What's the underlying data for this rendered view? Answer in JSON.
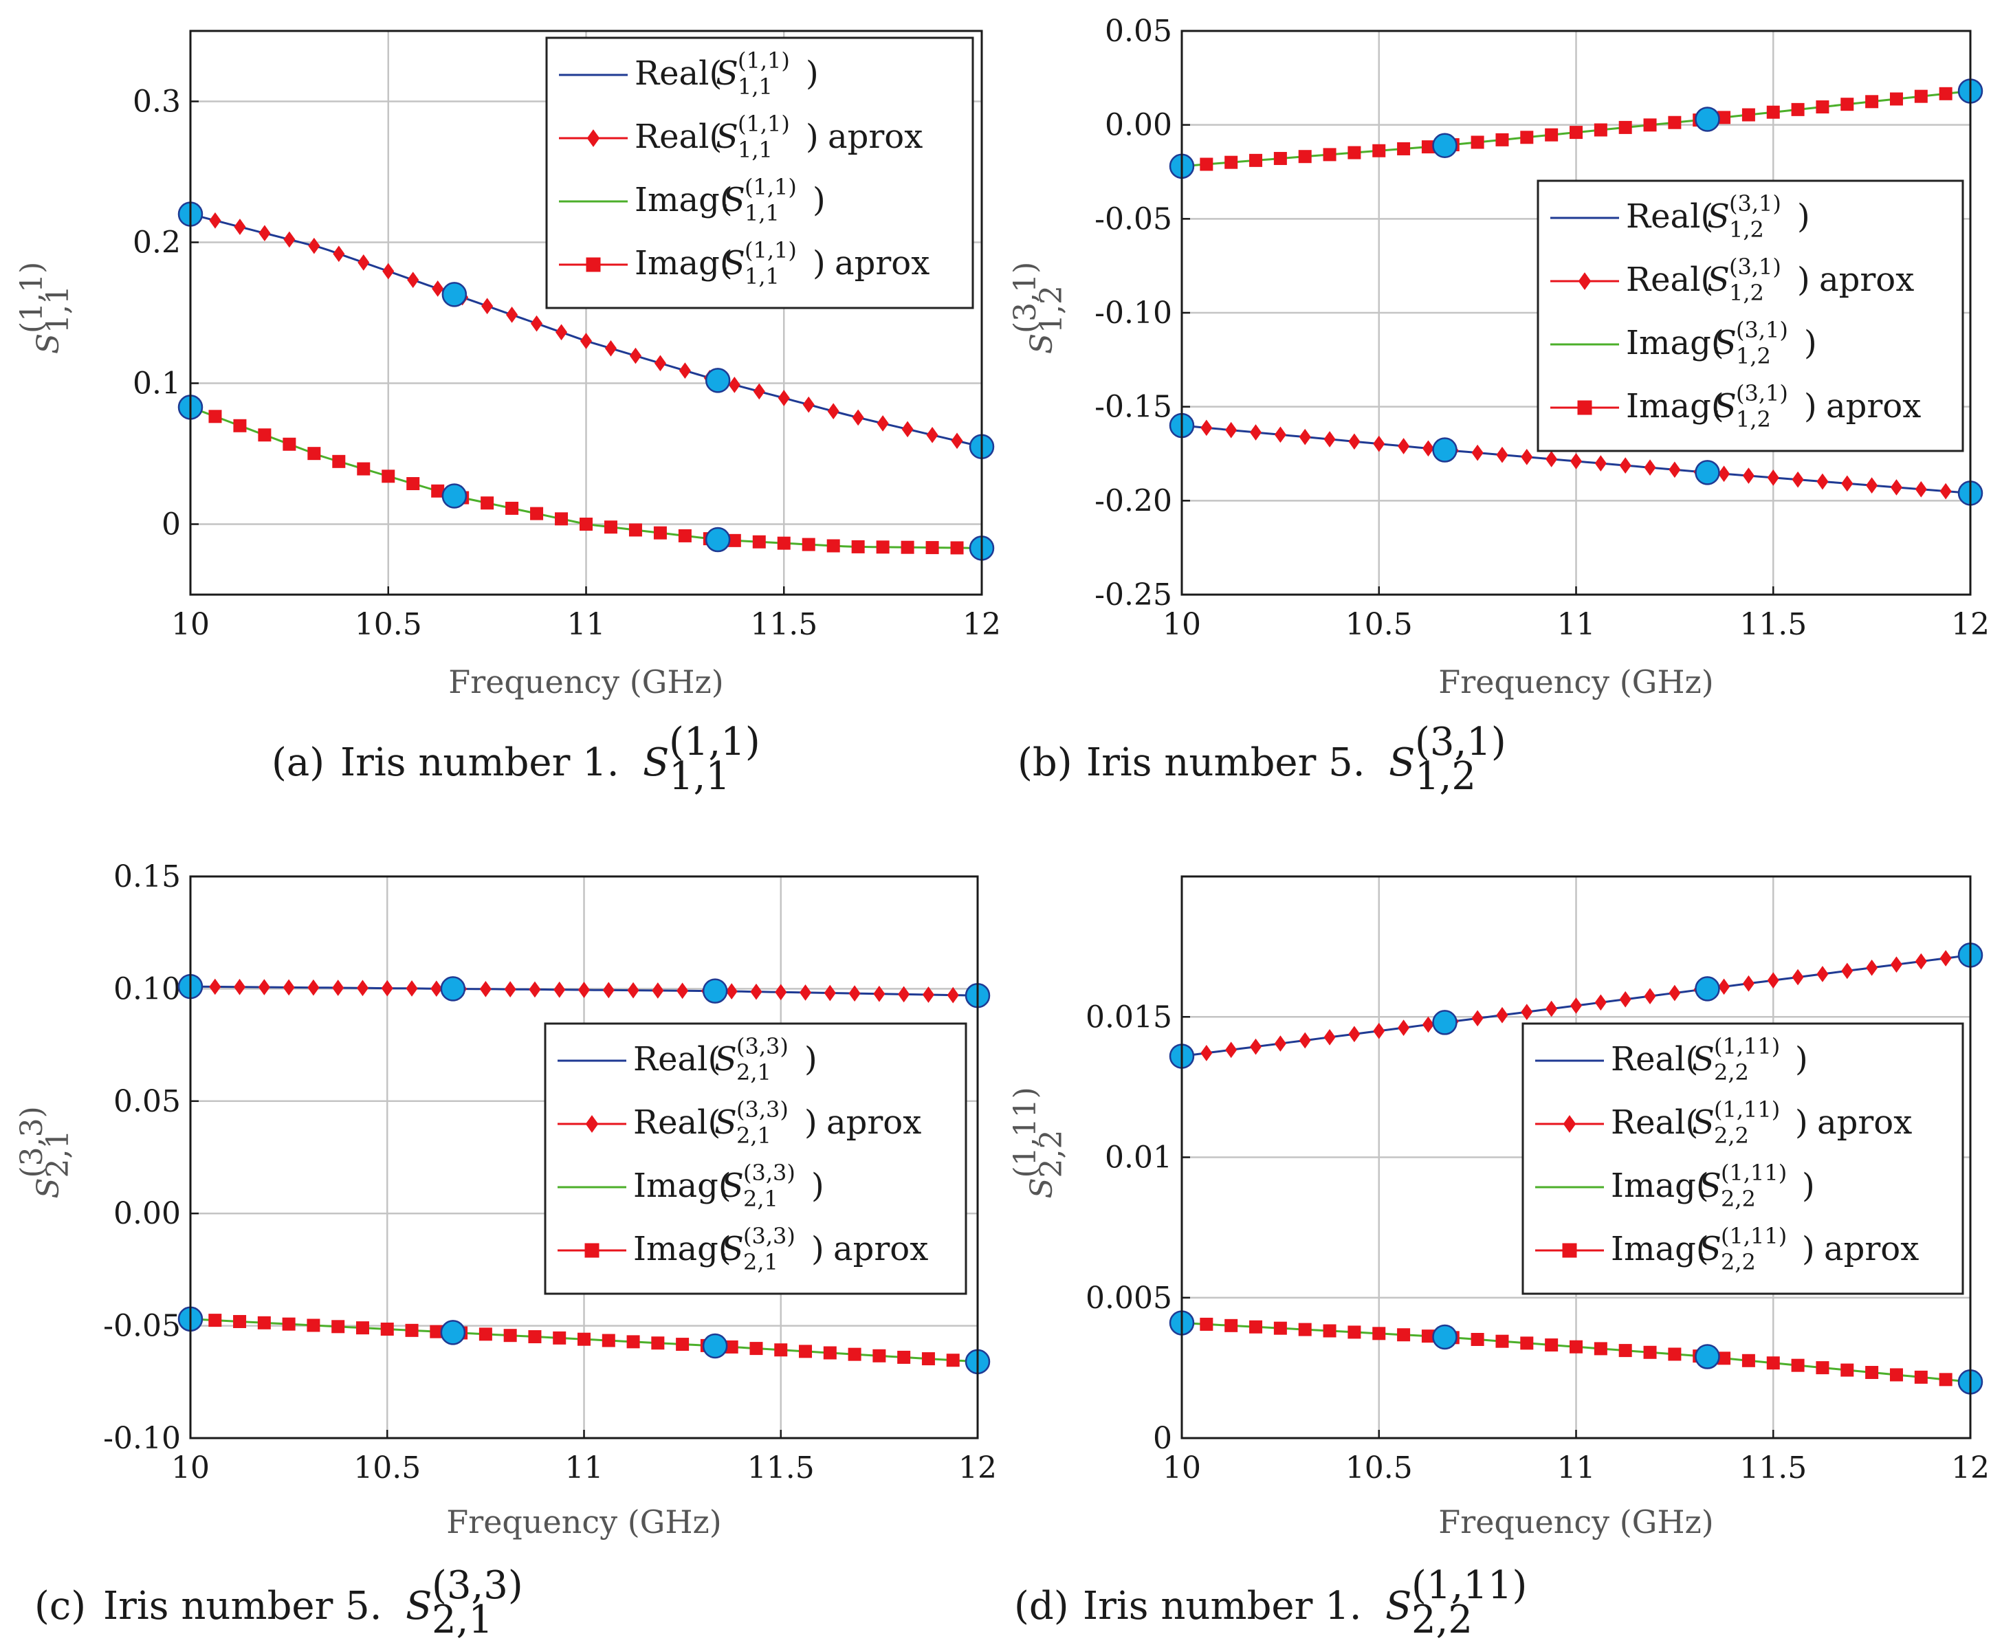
{
  "colors": {
    "real_line": "#1f3a93",
    "imag_line": "#4caf2a",
    "approx_marker": "#e8141c",
    "sample_marker_fill": "#12a8e6",
    "sample_marker_edge": "#1f3a93",
    "grid": "#c4c4c4",
    "axis": "#1a1a1a"
  },
  "chart_data": [
    {
      "type": "line",
      "panel": "a",
      "caption": {
        "prefix": "(a)",
        "text": "Iris number 1.",
        "symbol": "S",
        "sub": "1,1",
        "sup": "(1,1)"
      },
      "xlabel": "Frequency (GHz)",
      "ylabel": {
        "symbol": "S",
        "sub": "1,1",
        "sup": "(1,1)"
      },
      "xlim": [
        10,
        12
      ],
      "ylim": [
        -0.05,
        0.35
      ],
      "xticks": [
        10,
        10.5,
        11,
        11.5,
        12
      ],
      "xtick_labels": [
        "10",
        "10.5",
        "11",
        "11.5",
        "12"
      ],
      "yticks": [
        0,
        0.1,
        0.2,
        0.3
      ],
      "ytick_labels": [
        "0",
        "0.1",
        "0.2",
        "0.3"
      ],
      "legend_position": "top-right",
      "legend": [
        {
          "kind": "Real",
          "sub": "1,1",
          "sup": "(1,1)",
          "suffix": "",
          "style": "real-line"
        },
        {
          "kind": "Real",
          "sub": "1,1",
          "sup": "(1,1)",
          "suffix": "aprox",
          "style": "real-approx"
        },
        {
          "kind": "Imag",
          "sub": "1,1",
          "sup": "(1,1)",
          "suffix": "",
          "style": "imag-line"
        },
        {
          "kind": "Imag",
          "sub": "1,1",
          "sup": "(1,1)",
          "suffix": "aprox",
          "style": "imag-approx"
        }
      ],
      "series": [
        {
          "name": "Real",
          "x": [
            10,
            10.333,
            10.667,
            11,
            11.333,
            11.667,
            12
          ],
          "y": [
            0.22,
            0.196,
            0.163,
            0.13,
            0.102,
            0.077,
            0.055
          ]
        },
        {
          "name": "Imag",
          "x": [
            10,
            10.333,
            10.667,
            11,
            11.333,
            11.667,
            12
          ],
          "y": [
            0.083,
            0.048,
            0.02,
            0.0,
            -0.011,
            -0.016,
            -0.017
          ]
        }
      ],
      "approx_count": 33,
      "sample_points": [
        10,
        10.667,
        11.333,
        12
      ]
    },
    {
      "type": "line",
      "panel": "b",
      "caption": {
        "prefix": "(b)",
        "text": "Iris number 5.",
        "symbol": "S",
        "sub": "1,2",
        "sup": "(3,1)"
      },
      "xlabel": "Frequency (GHz)",
      "ylabel": {
        "symbol": "S",
        "sub": "1,2",
        "sup": "(3,1)"
      },
      "xlim": [
        10,
        12
      ],
      "ylim": [
        -0.25,
        0.05
      ],
      "xticks": [
        10,
        10.5,
        11,
        11.5,
        12
      ],
      "xtick_labels": [
        "10",
        "10.5",
        "11",
        "11.5",
        "12"
      ],
      "yticks": [
        -0.25,
        -0.2,
        -0.15,
        -0.1,
        -0.05,
        0,
        0.05
      ],
      "ytick_labels": [
        "-0.25",
        "-0.20",
        "-0.15",
        "-0.10",
        "-0.05",
        "0.00",
        "0.05"
      ],
      "legend_position": "center-right",
      "legend": [
        {
          "kind": "Real",
          "sub": "1,2",
          "sup": "(3,1)",
          "suffix": "",
          "style": "real-line"
        },
        {
          "kind": "Real",
          "sub": "1,2",
          "sup": "(3,1)",
          "suffix": "aprox",
          "style": "real-approx"
        },
        {
          "kind": "Imag",
          "sub": "1,2",
          "sup": "(3,1)",
          "suffix": "",
          "style": "imag-line"
        },
        {
          "kind": "Imag",
          "sub": "1,2",
          "sup": "(3,1)",
          "suffix": "aprox",
          "style": "imag-approx"
        }
      ],
      "series": [
        {
          "name": "Real",
          "x": [
            10,
            10.667,
            11.333,
            12
          ],
          "y": [
            -0.16,
            -0.173,
            -0.185,
            -0.196
          ]
        },
        {
          "name": "Imag",
          "x": [
            10,
            10.667,
            11.333,
            12
          ],
          "y": [
            -0.022,
            -0.011,
            0.003,
            0.018
          ]
        }
      ],
      "approx_count": 33,
      "sample_points": [
        10,
        10.667,
        11.333,
        12
      ]
    },
    {
      "type": "line",
      "panel": "c",
      "caption": {
        "prefix": "(c)",
        "text": "Iris number 5.",
        "symbol": "S",
        "sub": "2,1",
        "sup": "(3,3)"
      },
      "xlabel": "Frequency (GHz)",
      "ylabel": {
        "symbol": "S",
        "sub": "2,1",
        "sup": "(3,3)"
      },
      "xlim": [
        10,
        12
      ],
      "ylim": [
        -0.1,
        0.15
      ],
      "xticks": [
        10,
        10.5,
        11,
        11.5,
        12
      ],
      "xtick_labels": [
        "10",
        "10.5",
        "11",
        "11.5",
        "12"
      ],
      "yticks": [
        -0.1,
        -0.05,
        0,
        0.05,
        0.1,
        0.15
      ],
      "ytick_labels": [
        "-0.10",
        "-0.05",
        "0.00",
        "0.05",
        "0.10",
        "0.15"
      ],
      "legend_position": "center-right",
      "legend": [
        {
          "kind": "Real",
          "sub": "2,1",
          "sup": "(3,3)",
          "suffix": "",
          "style": "real-line"
        },
        {
          "kind": "Real",
          "sub": "2,1",
          "sup": "(3,3)",
          "suffix": "aprox",
          "style": "real-approx"
        },
        {
          "kind": "Imag",
          "sub": "2,1",
          "sup": "(3,3)",
          "suffix": "",
          "style": "imag-line"
        },
        {
          "kind": "Imag",
          "sub": "2,1",
          "sup": "(3,3)",
          "suffix": "aprox",
          "style": "imag-approx"
        }
      ],
      "series": [
        {
          "name": "Real",
          "x": [
            10,
            10.667,
            11.333,
            12
          ],
          "y": [
            0.101,
            0.1,
            0.099,
            0.097
          ]
        },
        {
          "name": "Imag",
          "x": [
            10,
            10.667,
            11.333,
            12
          ],
          "y": [
            -0.047,
            -0.053,
            -0.059,
            -0.066
          ]
        }
      ],
      "approx_count": 33,
      "sample_points": [
        10,
        10.667,
        11.333,
        12
      ]
    },
    {
      "type": "line",
      "panel": "d",
      "caption": {
        "prefix": "(d)",
        "text": "Iris number 1.",
        "symbol": "S",
        "sub": "2,2",
        "sup": "(1,11)"
      },
      "xlabel": "Frequency (GHz)",
      "ylabel": {
        "symbol": "S",
        "sub": "2,2",
        "sup": "(1,11)"
      },
      "xlim": [
        10,
        12
      ],
      "ylim": [
        0,
        0.02
      ],
      "xticks": [
        10,
        10.5,
        11,
        11.5,
        12
      ],
      "xtick_labels": [
        "10",
        "10.5",
        "11",
        "11.5",
        "12"
      ],
      "yticks": [
        0,
        0.005,
        0.01,
        0.015
      ],
      "ytick_labels": [
        "0",
        "0.005",
        "0.01",
        "0.015"
      ],
      "legend_position": "center-right",
      "legend": [
        {
          "kind": "Real",
          "sub": "2,2",
          "sup": "(1,11)",
          "suffix": "",
          "style": "real-line"
        },
        {
          "kind": "Real",
          "sub": "2,2",
          "sup": "(1,11)",
          "suffix": "aprox",
          "style": "real-approx"
        },
        {
          "kind": "Imag",
          "sub": "2,2",
          "sup": "(1,11)",
          "suffix": "",
          "style": "imag-line"
        },
        {
          "kind": "Imag",
          "sub": "2,2",
          "sup": "(1,11)",
          "suffix": "aprox",
          "style": "imag-approx"
        }
      ],
      "series": [
        {
          "name": "Real",
          "x": [
            10,
            10.667,
            11.333,
            12
          ],
          "y": [
            0.0136,
            0.0148,
            0.016,
            0.0172
          ]
        },
        {
          "name": "Imag",
          "x": [
            10,
            10.667,
            11.333,
            12
          ],
          "y": [
            0.0041,
            0.0036,
            0.0029,
            0.002
          ]
        }
      ],
      "approx_count": 33,
      "sample_points": [
        10,
        10.667,
        11.333,
        12
      ]
    }
  ]
}
